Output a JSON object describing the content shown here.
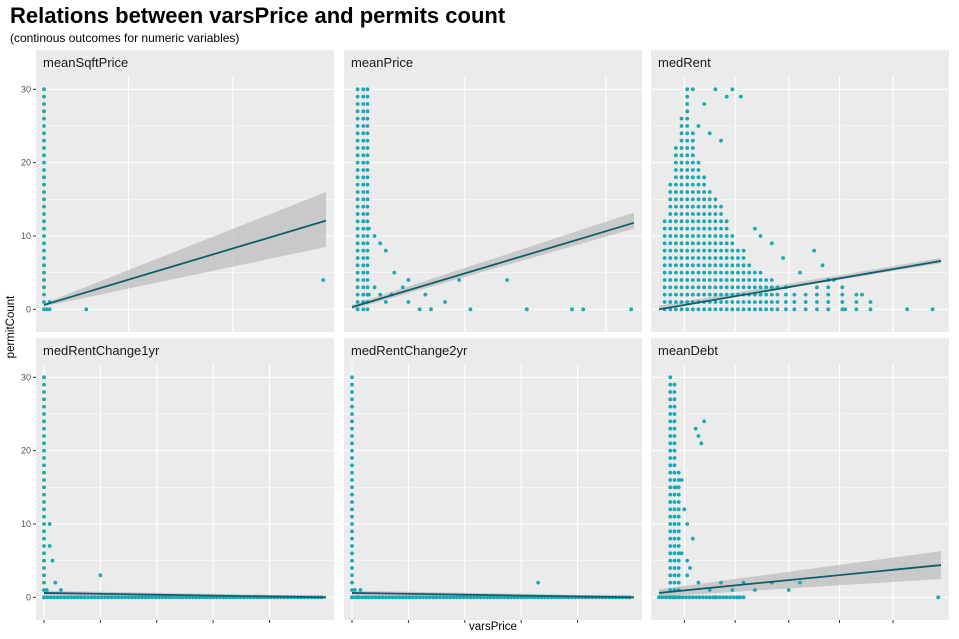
{
  "title": "Relations between varsPrice and permits count",
  "subtitle": "(continous outcomes for numeric variables)",
  "colors": {
    "points": "#18A9B8",
    "line": "#0E5F6E",
    "ribbon": "#BDBDBD",
    "panel": "#EBEBEB",
    "grid": "#FFFFFF"
  },
  "chart_data": {
    "type": "scatter",
    "xlabel": "varsPrice",
    "ylabel": "permitCount",
    "ylim": [
      -2,
      31
    ],
    "yticks": [
      0,
      10,
      20,
      30
    ],
    "xtick_labels_shown": false,
    "grid": true,
    "facets": [
      {
        "name": "meanSqftPrice",
        "xlim": [
          0,
          1
        ],
        "xticks": [
          0.3,
          0.67
        ],
        "fit": [
          0.6,
          12.1
        ],
        "band": [
          0.4,
          0.8,
          8.5,
          16
        ],
        "points": {
          "stack_x": [
            0.0
          ],
          "stack_top": 30,
          "stack_step": 1,
          "extra": [
            [
              0.01,
              0
            ],
            [
              0.02,
              0
            ],
            [
              0.15,
              0
            ],
            [
              0.02,
              1
            ],
            [
              0.99,
              4
            ]
          ]
        }
      },
      {
        "name": "meanPrice",
        "xlim": [
          0,
          1
        ],
        "xticks": [
          0.4,
          0.9
        ],
        "fit": [
          0.3,
          11.8
        ],
        "band": [
          0.0,
          0.6,
          11.0,
          13.2
        ],
        "points": {
          "stack_x": [
            0.02,
            0.04,
            0.055
          ],
          "stack_top": 30,
          "stack_step": 1,
          "extra": [
            [
              0.06,
              2
            ],
            [
              0.08,
              3
            ],
            [
              0.1,
              2
            ],
            [
              0.12,
              1
            ],
            [
              0.14,
              2
            ],
            [
              0.18,
              3
            ],
            [
              0.2,
              1
            ],
            [
              0.24,
              0
            ],
            [
              0.28,
              0
            ],
            [
              0.33,
              1
            ],
            [
              0.38,
              4
            ],
            [
              0.55,
              4
            ],
            [
              0.62,
              0
            ],
            [
              0.78,
              0
            ],
            [
              0.82,
              0
            ],
            [
              0.99,
              0
            ],
            [
              0.12,
              8
            ],
            [
              0.1,
              9
            ],
            [
              0.08,
              10
            ],
            [
              0.06,
              11
            ],
            [
              0.04,
              12
            ],
            [
              0.15,
              5
            ],
            [
              0.2,
              4
            ],
            [
              0.26,
              2
            ],
            [
              0.42,
              0
            ]
          ]
        }
      },
      {
        "name": "medRent",
        "xlim": [
          0,
          1
        ],
        "xticks": [
          0.09,
          0.27,
          0.46,
          0.64,
          0.83
        ],
        "fit": [
          0.0,
          6.6
        ],
        "band": [
          0.0,
          0.5,
          6.3,
          7.0
        ],
        "points": {
          "stack_x": [
            0.02,
            0.04,
            0.06,
            0.08,
            0.1,
            0.12,
            0.14,
            0.16,
            0.18,
            0.2,
            0.22,
            0.24,
            0.26,
            0.28,
            0.3,
            0.32,
            0.34,
            0.36,
            0.38,
            0.4,
            0.42,
            0.45,
            0.48,
            0.52,
            0.56,
            0.6,
            0.65,
            0.7,
            0.75
          ],
          "stack_top_list": [
            12,
            17,
            22,
            26,
            30,
            24,
            20,
            18,
            16,
            15,
            14,
            12,
            10,
            8,
            8,
            6,
            5,
            5,
            4,
            4,
            3,
            3,
            2,
            2,
            3,
            4,
            3,
            2,
            1
          ],
          "stack_step": 1,
          "extra": [
            [
              0.12,
              30
            ],
            [
              0.16,
              28
            ],
            [
              0.2,
              30
            ],
            [
              0.24,
              29
            ],
            [
              0.26,
              30
            ],
            [
              0.29,
              29
            ],
            [
              0.18,
              24
            ],
            [
              0.22,
              23
            ],
            [
              0.14,
              25
            ],
            [
              0.55,
              8
            ],
            [
              0.58,
              6
            ],
            [
              0.62,
              4
            ],
            [
              0.72,
              2
            ],
            [
              0.88,
              0
            ],
            [
              0.97,
              0
            ],
            [
              0.66,
              0
            ],
            [
              0.5,
              5
            ],
            [
              0.44,
              7
            ],
            [
              0.4,
              9
            ],
            [
              0.36,
              10
            ],
            [
              0.34,
              11
            ]
          ]
        }
      },
      {
        "name": "medRentChange1yr",
        "xlim": [
          0,
          1
        ],
        "xticks": [
          0.0,
          0.2,
          0.4,
          0.6,
          0.8
        ],
        "fit": [
          0.6,
          0.0
        ],
        "band": [
          0.3,
          0.9,
          -0.2,
          0.2
        ],
        "points": {
          "stack_x": [
            0.0
          ],
          "stack_top": 30,
          "stack_step": 1,
          "dense_row": {
            "y": 0,
            "from": 0.0,
            "to": 0.99,
            "step": 0.012
          },
          "extra": [
            [
              0.01,
              1
            ],
            [
              0.02,
              7
            ],
            [
              0.04,
              2
            ],
            [
              0.06,
              1
            ],
            [
              0.2,
              3
            ],
            [
              0.02,
              10
            ],
            [
              0.03,
              5
            ]
          ]
        }
      },
      {
        "name": "medRentChange2yr",
        "xlim": [
          0,
          1
        ],
        "xticks": [
          0.0,
          0.2,
          0.4,
          0.6,
          0.8
        ],
        "fit": [
          0.6,
          0.0
        ],
        "band": [
          0.3,
          0.9,
          -0.2,
          0.2
        ],
        "points": {
          "stack_x": [
            0.0
          ],
          "stack_top": 30,
          "stack_step": 1,
          "dense_row": {
            "y": 0,
            "from": 0.0,
            "to": 0.99,
            "step": 0.012
          },
          "extra": [
            [
              0.01,
              1
            ],
            [
              0.02,
              0
            ],
            [
              0.03,
              1
            ],
            [
              0.66,
              2
            ],
            [
              0.05,
              0
            ]
          ]
        }
      },
      {
        "name": "meanDebt",
        "xlim": [
          0,
          1
        ],
        "xticks": [
          0.09,
          0.27,
          0.46,
          0.64,
          0.83
        ],
        "fit": [
          0.6,
          4.4
        ],
        "band": [
          0.1,
          1.1,
          2.5,
          6.3
        ],
        "points": {
          "stack_x": [
            0.04,
            0.055,
            0.07
          ],
          "stack_top_list": [
            30,
            29,
            17
          ],
          "stack_step": 1,
          "dense_row": {
            "y": 0,
            "from": 0.0,
            "to": 0.3,
            "step": 0.012
          },
          "extra": [
            [
              0.08,
              16
            ],
            [
              0.09,
              12
            ],
            [
              0.1,
              10
            ],
            [
              0.12,
              8
            ],
            [
              0.14,
              22
            ],
            [
              0.16,
              24
            ],
            [
              0.15,
              21
            ],
            [
              0.13,
              23
            ],
            [
              0.11,
              4
            ],
            [
              0.1,
              3
            ],
            [
              0.14,
              2
            ],
            [
              0.18,
              1
            ],
            [
              0.22,
              2
            ],
            [
              0.26,
              1
            ],
            [
              0.3,
              2
            ],
            [
              0.34,
              1
            ],
            [
              0.4,
              2
            ],
            [
              0.46,
              1
            ],
            [
              0.5,
              2
            ],
            [
              0.99,
              0
            ],
            [
              0.2,
              0
            ],
            [
              0.28,
              0
            ],
            [
              0.08,
              6
            ],
            [
              0.06,
              15
            ],
            [
              0.1,
              5
            ]
          ]
        }
      }
    ]
  }
}
